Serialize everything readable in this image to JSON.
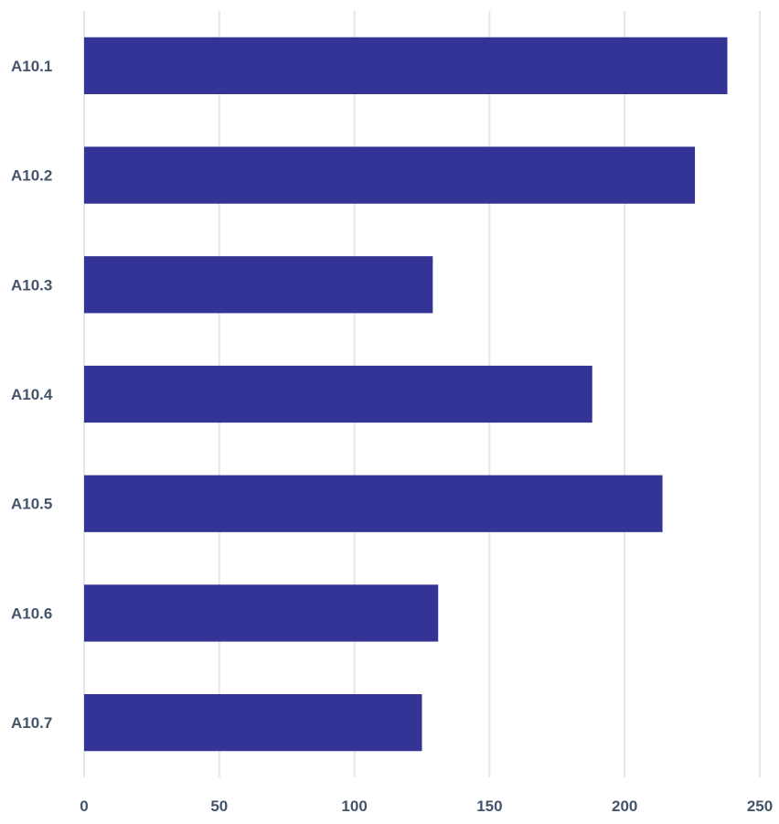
{
  "chart_data": {
    "type": "bar",
    "orientation": "horizontal",
    "categories": [
      "A10.1",
      "A10.2",
      "A10.3",
      "A10.4",
      "A10.5",
      "A10.6",
      "A10.7"
    ],
    "values": [
      238,
      226,
      129,
      188,
      214,
      131,
      125
    ],
    "xlim": [
      0,
      250
    ],
    "xticks": [
      0,
      50,
      100,
      150,
      200,
      250
    ],
    "grid": true,
    "legend": "none",
    "bar_color": "#343396"
  }
}
